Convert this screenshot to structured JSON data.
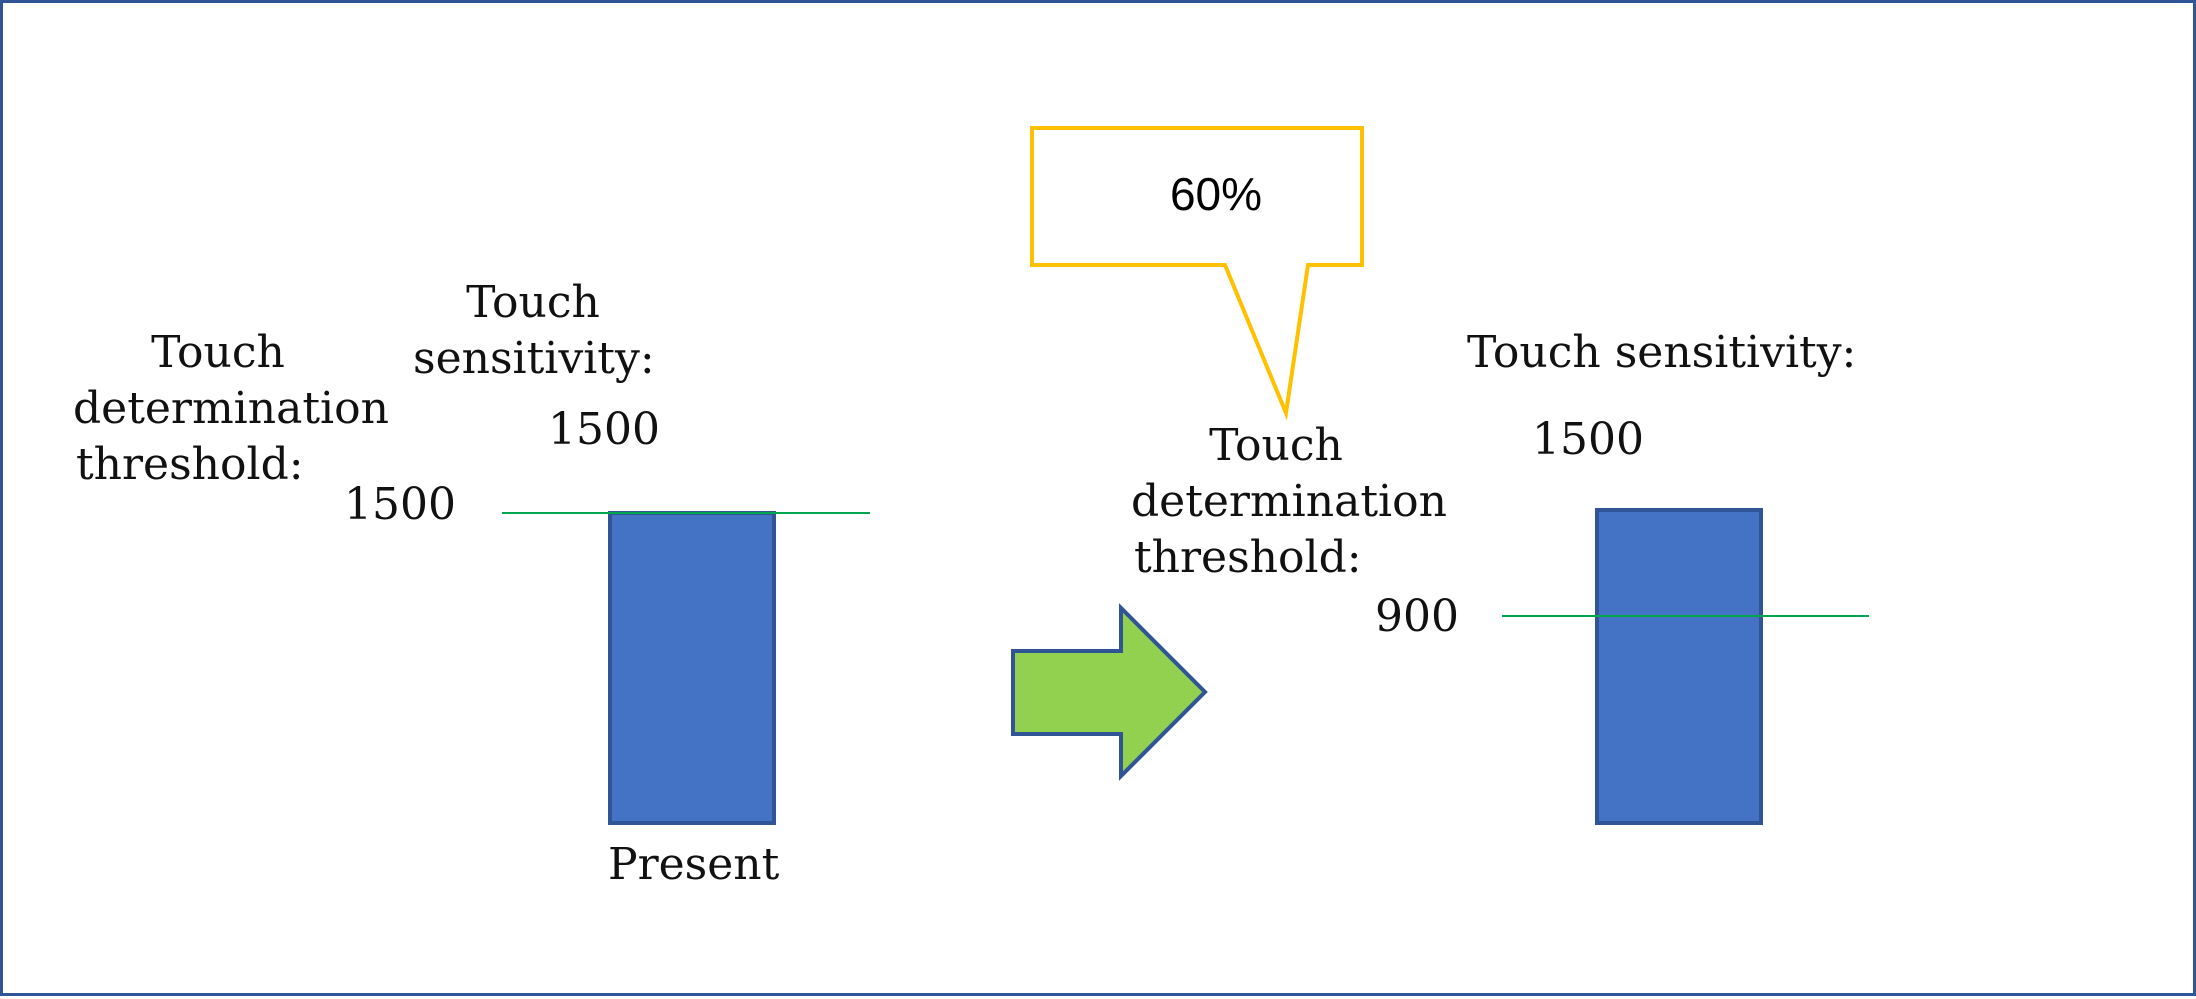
{
  "colors": {
    "frame": "#2F5597",
    "bar_fill": "#4472C4",
    "bar_stroke": "#2F5597",
    "threshold_line": "#00A550",
    "arrow_fill": "#92D050",
    "arrow_stroke": "#2F5597",
    "callout_stroke": "#FFC000"
  },
  "left": {
    "threshold_label_lines": [
      "Touch",
      "determination",
      "threshold:"
    ],
    "threshold_value": "1500",
    "sensitivity_label_lines": [
      "Touch",
      "sensitivity:"
    ],
    "sensitivity_value": "1500",
    "bar_caption": "Present"
  },
  "arrow": {
    "icon": "right-arrow-icon"
  },
  "callout": {
    "text": "60%"
  },
  "right": {
    "threshold_label_lines": [
      "Touch",
      "determination",
      "threshold:"
    ],
    "threshold_value": "900",
    "sensitivity_label": "Touch sensitivity:",
    "sensitivity_value": "1500"
  }
}
